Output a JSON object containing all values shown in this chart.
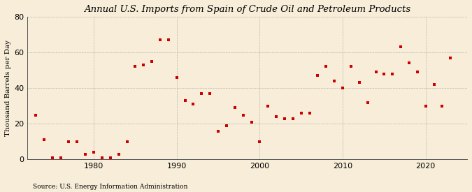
{
  "title": "Annual U.S. Imports from Spain of Crude Oil and Petroleum Products",
  "ylabel": "Thousand Barrels per Day",
  "source": "Source: U.S. Energy Information Administration",
  "background_color": "#f7edd8",
  "plot_bg_color": "#f7edd8",
  "dot_color": "#cc0000",
  "years": [
    1973,
    1974,
    1975,
    1976,
    1977,
    1978,
    1979,
    1980,
    1981,
    1982,
    1983,
    1984,
    1985,
    1986,
    1987,
    1988,
    1989,
    1990,
    1991,
    1992,
    1993,
    1994,
    1995,
    1996,
    1997,
    1998,
    1999,
    2000,
    2001,
    2002,
    2003,
    2004,
    2005,
    2006,
    2007,
    2008,
    2009,
    2010,
    2011,
    2012,
    2013,
    2014,
    2015,
    2016,
    2017,
    2018,
    2019,
    2020,
    2021,
    2022,
    2023
  ],
  "values": [
    25,
    11,
    1,
    1,
    10,
    10,
    3,
    4,
    1,
    1,
    3,
    10,
    52,
    53,
    55,
    67,
    67,
    46,
    33,
    31,
    37,
    37,
    16,
    19,
    29,
    25,
    21,
    10,
    30,
    24,
    23,
    23,
    26,
    26,
    47,
    52,
    44,
    40,
    52,
    43,
    32,
    49,
    48,
    48,
    63,
    54,
    49,
    30,
    42,
    30,
    57
  ],
  "ylim": [
    0,
    80
  ],
  "yticks": [
    0,
    20,
    40,
    60,
    80
  ],
  "xlim": [
    1972,
    2025
  ],
  "xticks": [
    1980,
    1990,
    2000,
    2010,
    2020
  ],
  "marker_size": 7,
  "title_fontsize": 9.5,
  "ylabel_fontsize": 7.5,
  "tick_fontsize": 8,
  "source_fontsize": 6.5
}
